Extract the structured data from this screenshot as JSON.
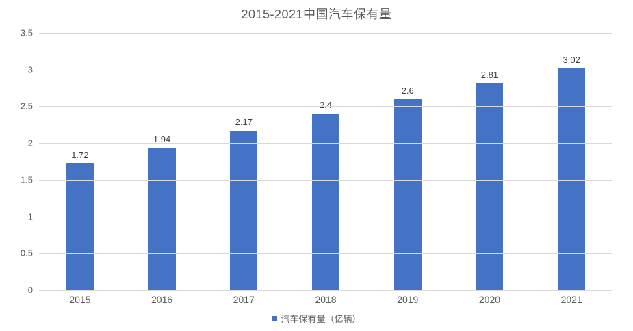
{
  "chart_data": {
    "type": "bar",
    "title": "2015-2021中国汽车保有量",
    "categories": [
      "2015",
      "2016",
      "2017",
      "2018",
      "2019",
      "2020",
      "2021"
    ],
    "series": [
      {
        "name": "汽车保有量（亿辆）",
        "values": [
          1.72,
          1.94,
          2.17,
          2.4,
          2.6,
          2.81,
          3.02
        ],
        "data_labels": [
          "1.72",
          "1.94",
          "2.17",
          "2.4",
          "2.6",
          "2.81",
          "3.02"
        ]
      }
    ],
    "xlabel": "",
    "ylabel": "",
    "ylim": [
      0,
      3.5
    ],
    "ytick_step": 0.5,
    "yticks": [
      "0",
      "0.5",
      "1",
      "1.5",
      "2",
      "2.5",
      "3",
      "3.5"
    ],
    "grid": true,
    "legend_position": "bottom",
    "colors": {
      "bar": "#4472C4",
      "gridline": "#D9D9D9",
      "axis_text": "#595959",
      "title_text": "#595959",
      "data_label_text": "#404040"
    }
  }
}
